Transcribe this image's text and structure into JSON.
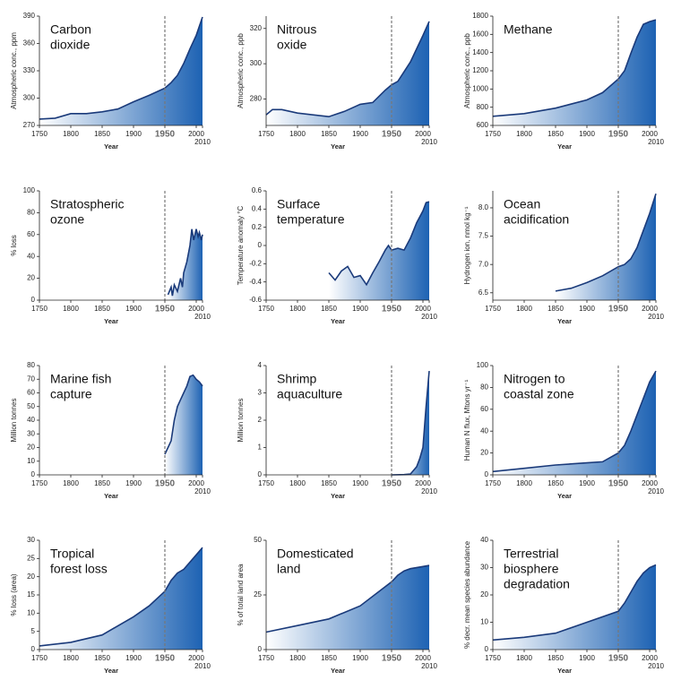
{
  "chart_data": [
    {
      "type": "area",
      "title": [
        "Carbon",
        "dioxide"
      ],
      "ylabel": "Atmospheric conc., ppm",
      "xlabel": "Year",
      "x": [
        1750,
        1775,
        1800,
        1825,
        1850,
        1875,
        1900,
        1925,
        1950,
        1960,
        1970,
        1980,
        1990,
        2000,
        2010
      ],
      "values": [
        277,
        278,
        283,
        283,
        285,
        288,
        296,
        303,
        311,
        317,
        325,
        338,
        354,
        369,
        389
      ],
      "xlim": [
        1750,
        2010
      ],
      "xticks": [
        1750,
        1800,
        1850,
        1900,
        1950,
        2000,
        2010
      ],
      "ylim": [
        270,
        390
      ],
      "yticks": [
        270,
        300,
        330,
        360,
        390
      ],
      "vline": 1950,
      "color": "#1a3a7a",
      "fill": "#1d62b3"
    },
    {
      "type": "area",
      "title": [
        "Nitrous",
        "oxide"
      ],
      "ylabel": "Atmospheric conc., ppb",
      "xlabel": "Year",
      "x": [
        1750,
        1760,
        1775,
        1800,
        1850,
        1875,
        1900,
        1920,
        1940,
        1950,
        1960,
        1980,
        2000,
        2010
      ],
      "values": [
        271,
        274,
        274,
        272,
        270,
        273,
        277,
        278,
        285,
        288,
        290,
        301,
        316,
        324
      ],
      "xlim": [
        1750,
        2010
      ],
      "xticks": [
        1750,
        1800,
        1850,
        1900,
        1950,
        2000,
        2010
      ],
      "ylim": [
        265,
        327
      ],
      "yticks": [
        280,
        300,
        320
      ],
      "vline": 1950,
      "color": "#1a3a7a",
      "fill": "#1d62b3"
    },
    {
      "type": "area",
      "title": [
        "Methane"
      ],
      "ylabel": "Atmospheric conc., ppb",
      "xlabel": "Year",
      "x": [
        1750,
        1800,
        1850,
        1900,
        1925,
        1950,
        1960,
        1970,
        1980,
        1990,
        2000,
        2010
      ],
      "values": [
        700,
        730,
        790,
        880,
        960,
        1110,
        1200,
        1390,
        1570,
        1710,
        1740,
        1760
      ],
      "xlim": [
        1750,
        2010
      ],
      "xticks": [
        1750,
        1800,
        1850,
        1900,
        1950,
        2000,
        2010
      ],
      "ylim": [
        600,
        1800
      ],
      "yticks": [
        600,
        800,
        1000,
        1200,
        1400,
        1600,
        1800
      ],
      "vline": 1950,
      "color": "#1a3a7a",
      "fill": "#1d62b3"
    },
    {
      "type": "area",
      "title": [
        "Stratospheric",
        "ozone"
      ],
      "ylabel": "% loss",
      "xlabel": "Year",
      "x": [
        1955,
        1960,
        1962,
        1965,
        1970,
        1975,
        1978,
        1980,
        1985,
        1990,
        1993,
        1996,
        2000,
        2003,
        2005,
        2008,
        2010
      ],
      "values": [
        5,
        12,
        4,
        14,
        8,
        20,
        12,
        25,
        35,
        50,
        65,
        55,
        65,
        58,
        62,
        55,
        60
      ],
      "xlim": [
        1750,
        2010
      ],
      "xticks": [
        1750,
        1800,
        1850,
        1900,
        1950,
        2000,
        2010
      ],
      "ylim": [
        0,
        100
      ],
      "yticks": [
        0,
        20,
        40,
        60,
        80,
        100
      ],
      "vline": 1950,
      "color": "#1a3a7a",
      "fill": "#1d62b3"
    },
    {
      "type": "area",
      "title": [
        "Surface",
        "temperature"
      ],
      "ylabel": "Temperature anomaly °C",
      "xlabel": "Year",
      "x": [
        1850,
        1860,
        1870,
        1880,
        1890,
        1900,
        1910,
        1920,
        1930,
        1940,
        1945,
        1950,
        1960,
        1970,
        1980,
        1990,
        2000,
        2005,
        2010
      ],
      "values": [
        -0.3,
        -0.38,
        -0.28,
        -0.23,
        -0.35,
        -0.33,
        -0.43,
        -0.3,
        -0.18,
        -0.05,
        0,
        -0.05,
        -0.03,
        -0.05,
        0.08,
        0.25,
        0.38,
        0.47,
        0.48
      ],
      "xlim": [
        1750,
        2010
      ],
      "xticks": [
        1750,
        1800,
        1850,
        1900,
        1950,
        2000,
        2010
      ],
      "ylim": [
        -0.6,
        0.6
      ],
      "yticks": [
        -0.6,
        -0.4,
        -0.2,
        0,
        0.2,
        0.4,
        0.6
      ],
      "vline": 1950,
      "color": "#1a3a7a",
      "fill": "#1d62b3"
    },
    {
      "type": "area",
      "title": [
        "Ocean",
        "acidification"
      ],
      "ylabel": "Hydrogen ion, nmol kg⁻¹",
      "xlabel": "Year",
      "x": [
        1850,
        1875,
        1900,
        1925,
        1950,
        1960,
        1970,
        1980,
        1990,
        2000,
        2010
      ],
      "values": [
        6.53,
        6.58,
        6.68,
        6.8,
        6.96,
        7.0,
        7.1,
        7.3,
        7.6,
        7.9,
        8.25
      ],
      "xlim": [
        1750,
        2010
      ],
      "xticks": [
        1750,
        1800,
        1850,
        1900,
        1950,
        2000,
        2010
      ],
      "ylim": [
        6.37,
        8.3
      ],
      "yticks": [
        6.5,
        {
          "value": 7,
          "label": "7.0"
        },
        7.5,
        {
          "value": 8,
          "label": "8.0"
        }
      ],
      "vline": 1950,
      "color": "#1a3a7a",
      "fill": "#1d62b3"
    },
    {
      "type": "area",
      "title": [
        "Marine fish",
        "capture"
      ],
      "ylabel": "Million tonnes",
      "xlabel": "Year",
      "x": [
        1950,
        1955,
        1960,
        1965,
        1970,
        1975,
        1980,
        1985,
        1990,
        1995,
        2000,
        2005,
        2010
      ],
      "values": [
        15,
        20,
        25,
        40,
        50,
        55,
        60,
        65,
        72,
        73,
        70,
        68,
        65
      ],
      "xlim": [
        1750,
        2010
      ],
      "xticks": [
        1750,
        1800,
        1850,
        1900,
        1950,
        2000,
        2010
      ],
      "ylim": [
        0,
        80
      ],
      "yticks": [
        0,
        10,
        20,
        30,
        40,
        50,
        60,
        70,
        80
      ],
      "vline": 1950,
      "color": "#1a3a7a",
      "fill": "#1d62b3"
    },
    {
      "type": "area",
      "title": [
        "Shrimp",
        "aquaculture"
      ],
      "ylabel": "Million tonnes",
      "xlabel": "Year",
      "x": [
        1950,
        1970,
        1980,
        1990,
        1995,
        2000,
        2005,
        2010
      ],
      "values": [
        0,
        0.01,
        0.03,
        0.3,
        0.6,
        1.0,
        2.5,
        3.8
      ],
      "xlim": [
        1750,
        2010
      ],
      "xticks": [
        1750,
        1800,
        1850,
        1900,
        1950,
        2000,
        2010
      ],
      "ylim": [
        0,
        4
      ],
      "yticks": [
        0,
        1,
        2,
        3,
        4
      ],
      "vline": 1950,
      "color": "#1a3a7a",
      "fill": "#1d62b3"
    },
    {
      "type": "area",
      "title": [
        "Nitrogen to",
        "coastal zone"
      ],
      "ylabel": "Human N flux, Mtons yr⁻¹",
      "xlabel": "Year",
      "x": [
        1750,
        1800,
        1850,
        1900,
        1925,
        1950,
        1960,
        1970,
        1980,
        1990,
        2000,
        2010
      ],
      "values": [
        3,
        6,
        9,
        11,
        12,
        20,
        27,
        40,
        55,
        70,
        85,
        95
      ],
      "xlim": [
        1750,
        2010
      ],
      "xticks": [
        1750,
        1800,
        1850,
        1900,
        1950,
        2000,
        2010
      ],
      "ylim": [
        0,
        100
      ],
      "yticks": [
        0,
        20,
        40,
        60,
        80,
        100
      ],
      "vline": 1950,
      "color": "#1a3a7a",
      "fill": "#1d62b3"
    },
    {
      "type": "area",
      "title": [
        "Tropical",
        "forest loss"
      ],
      "ylabel": "% loss (area)",
      "xlabel": "Year",
      "x": [
        1750,
        1800,
        1850,
        1900,
        1925,
        1950,
        1960,
        1970,
        1980,
        1990,
        2000,
        2010
      ],
      "values": [
        1,
        2,
        4,
        9,
        12,
        16,
        19,
        21,
        22,
        24,
        26,
        28
      ],
      "xlim": [
        1750,
        2010
      ],
      "xticks": [
        1750,
        1800,
        1850,
        1900,
        1950,
        2000,
        2010
      ],
      "ylim": [
        0,
        30
      ],
      "yticks": [
        0,
        5,
        10,
        15,
        20,
        25,
        30
      ],
      "vline": 1950,
      "color": "#1a3a7a",
      "fill": "#1d62b3"
    },
    {
      "type": "area",
      "title": [
        "Domesticated",
        "land"
      ],
      "ylabel": "% of total land area",
      "xlabel": "Year",
      "x": [
        1750,
        1800,
        1850,
        1900,
        1950,
        1960,
        1970,
        1980,
        2000,
        2010
      ],
      "values": [
        8,
        11,
        14,
        20,
        31,
        34,
        36,
        37,
        38,
        38.5
      ],
      "xlim": [
        1750,
        2010
      ],
      "xticks": [
        1750,
        1800,
        1850,
        1900,
        1950,
        2000,
        2010
      ],
      "ylim": [
        0,
        50
      ],
      "yticks": [
        0,
        25,
        50
      ],
      "vline": 1950,
      "color": "#1a3a7a",
      "fill": "#1d62b3"
    },
    {
      "type": "area",
      "title": [
        "Terrestrial",
        "biosphere",
        "degradation"
      ],
      "ylabel": "% decr. mean species abundance",
      "xlabel": "Year",
      "x": [
        1750,
        1800,
        1850,
        1900,
        1950,
        1960,
        1970,
        1980,
        1990,
        2000,
        2010
      ],
      "values": [
        3.5,
        4.5,
        6,
        10,
        14,
        17,
        21,
        25,
        28,
        30,
        31
      ],
      "xlim": [
        1750,
        2010
      ],
      "xticks": [
        1750,
        1800,
        1850,
        1900,
        1950,
        2000,
        2010
      ],
      "ylim": [
        0,
        40
      ],
      "yticks": [
        0,
        10,
        20,
        30,
        40
      ],
      "vline": 1950,
      "color": "#1a3a7a",
      "fill": "#1d62b3"
    }
  ]
}
